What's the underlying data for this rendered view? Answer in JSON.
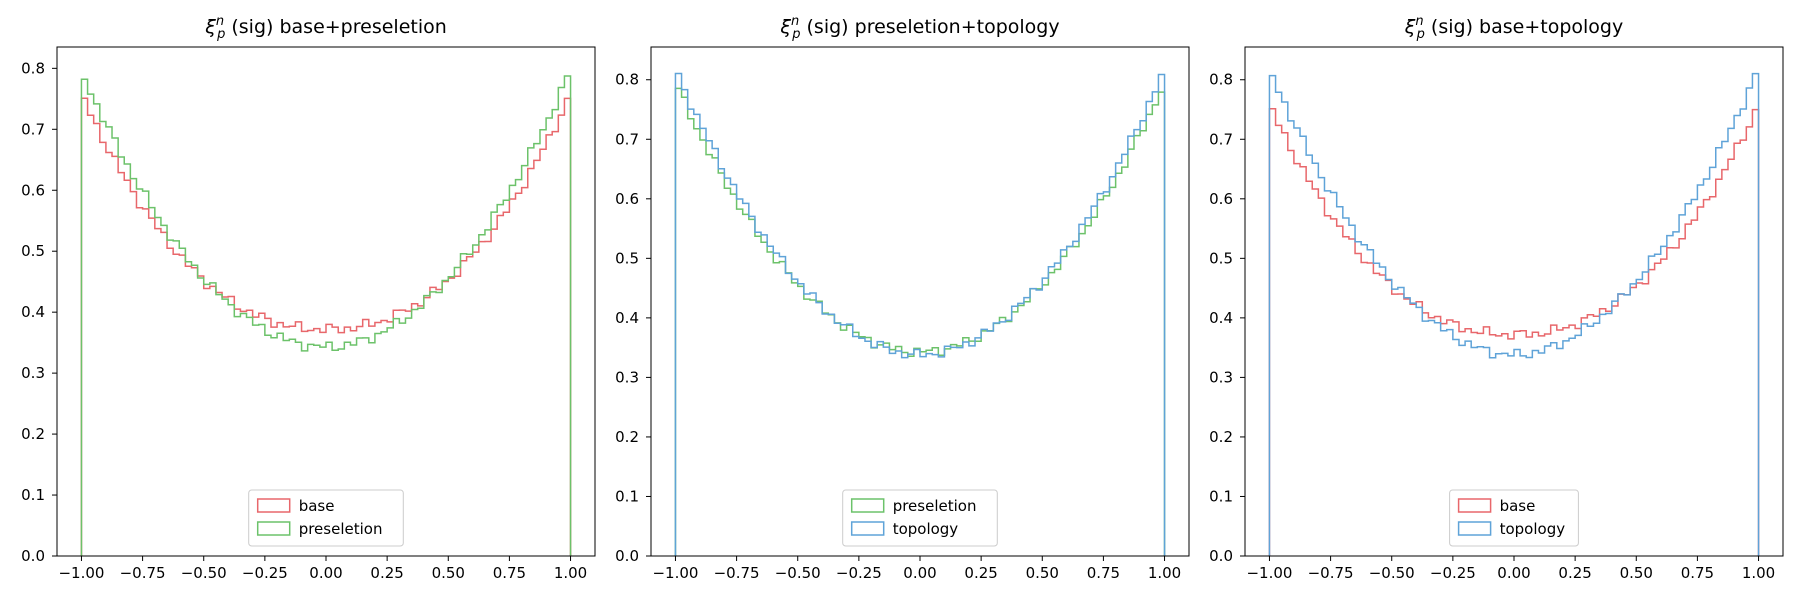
{
  "colors": {
    "base": "#e8676b",
    "preseletion": "#6cc26a",
    "topology": "#5fa3d8"
  },
  "chart_data": [
    {
      "type": "step-histogram",
      "title": "ξ_p^n (sig) base+preseletion",
      "title_parts": {
        "symbol": "ξ",
        "sub": "p",
        "sup": "n",
        "rest": " (sig) base+preseletion"
      },
      "xlim": [
        -1.1,
        1.1
      ],
      "ylim": [
        0,
        0.835
      ],
      "xticks": [
        -1.0,
        -0.75,
        -0.5,
        -0.25,
        0.0,
        0.25,
        0.5,
        0.75,
        1.0
      ],
      "xtick_labels": [
        "−1.00",
        "−0.75",
        "−0.50",
        "−0.25",
        "0.00",
        "0.25",
        "0.50",
        "0.75",
        "1.00"
      ],
      "yticks": [
        0.0,
        0.1,
        0.2,
        0.3,
        0.4,
        0.5,
        0.6,
        0.7,
        0.8
      ],
      "ytick_labels": [
        "0.0",
        "0.1",
        "0.2",
        "0.3",
        "0.4",
        "0.5",
        "0.6",
        "0.7",
        "0.8"
      ],
      "bins": 80,
      "range": [
        -1,
        1
      ],
      "series": [
        {
          "name": "base",
          "color_key": "base",
          "profile": {
            "edge": 0.757,
            "min": 0.372,
            "exponent": 2.25
          }
        },
        {
          "name": "preseletion",
          "color_key": "preseletion",
          "profile": {
            "edge": 0.795,
            "min": 0.343,
            "exponent": 2.0
          }
        }
      ],
      "legend": {
        "placement": "lower-center",
        "entries": [
          "base",
          "preseletion"
        ]
      }
    },
    {
      "type": "step-histogram",
      "title": "ξ_p^n (sig) preseletion+topology",
      "title_parts": {
        "symbol": "ξ",
        "sub": "p",
        "sup": "n",
        "rest": " (sig) preseletion+topology"
      },
      "xlim": [
        -1.1,
        1.1
      ],
      "ylim": [
        0,
        0.855
      ],
      "xticks": [
        -1.0,
        -0.75,
        -0.5,
        -0.25,
        0.0,
        0.25,
        0.5,
        0.75,
        1.0
      ],
      "xtick_labels": [
        "−1.00",
        "−0.75",
        "−0.50",
        "−0.25",
        "0.00",
        "0.25",
        "0.50",
        "0.75",
        "1.00"
      ],
      "yticks": [
        0.0,
        0.1,
        0.2,
        0.3,
        0.4,
        0.5,
        0.6,
        0.7,
        0.8
      ],
      "ytick_labels": [
        "0.0",
        "0.1",
        "0.2",
        "0.3",
        "0.4",
        "0.5",
        "0.6",
        "0.7",
        "0.8"
      ],
      "bins": 80,
      "range": [
        -1,
        1
      ],
      "series": [
        {
          "name": "preseletion",
          "color_key": "preseletion",
          "profile": {
            "edge": 0.795,
            "min": 0.343,
            "exponent": 2.0
          }
        },
        {
          "name": "topology",
          "color_key": "topology",
          "profile": {
            "edge": 0.817,
            "min": 0.338,
            "exponent": 1.95
          }
        }
      ],
      "legend": {
        "placement": "lower-center",
        "entries": [
          "preseletion",
          "topology"
        ]
      }
    },
    {
      "type": "step-histogram",
      "title": "ξ_p^n (sig) base+topology",
      "title_parts": {
        "symbol": "ξ",
        "sub": "p",
        "sup": "n",
        "rest": " (sig) base+topology"
      },
      "xlim": [
        -1.1,
        1.1
      ],
      "ylim": [
        0,
        0.855
      ],
      "xticks": [
        -1.0,
        -0.75,
        -0.5,
        -0.25,
        0.0,
        0.25,
        0.5,
        0.75,
        1.0
      ],
      "xtick_labels": [
        "−1.00",
        "−0.75",
        "−0.50",
        "−0.25",
        "0.00",
        "0.25",
        "0.50",
        "0.75",
        "1.00"
      ],
      "yticks": [
        0.0,
        0.1,
        0.2,
        0.3,
        0.4,
        0.5,
        0.6,
        0.7,
        0.8
      ],
      "ytick_labels": [
        "0.0",
        "0.1",
        "0.2",
        "0.3",
        "0.4",
        "0.5",
        "0.6",
        "0.7",
        "0.8"
      ],
      "bins": 80,
      "range": [
        -1,
        1
      ],
      "series": [
        {
          "name": "base",
          "color_key": "base",
          "profile": {
            "edge": 0.757,
            "min": 0.372,
            "exponent": 2.25
          }
        },
        {
          "name": "topology",
          "color_key": "topology",
          "profile": {
            "edge": 0.817,
            "min": 0.338,
            "exponent": 1.95
          }
        }
      ],
      "legend": {
        "placement": "lower-center",
        "entries": [
          "base",
          "topology"
        ]
      }
    }
  ]
}
